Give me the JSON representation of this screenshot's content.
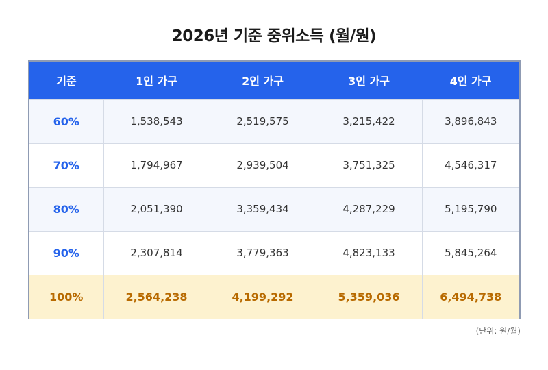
{
  "title": "2026년 기준 중위소득 (월/원)",
  "table": {
    "headers": [
      "기준",
      "1인 가구",
      "2인 가구",
      "3인 가구",
      "4인 가구"
    ],
    "rows": [
      {
        "label": "60%",
        "values": [
          "1,538,543",
          "2,519,575",
          "3,215,422",
          "3,896,843"
        ]
      },
      {
        "label": "70%",
        "values": [
          "1,794,967",
          "2,939,504",
          "3,751,325",
          "4,546,317"
        ]
      },
      {
        "label": "80%",
        "values": [
          "2,051,390",
          "3,359,434",
          "4,287,229",
          "5,195,790"
        ]
      },
      {
        "label": "90%",
        "values": [
          "2,307,814",
          "3,779,363",
          "4,823,133",
          "5,845,264"
        ]
      },
      {
        "label": "100%",
        "values": [
          "2,564,238",
          "4,199,292",
          "5,359,036",
          "6,494,738"
        ]
      }
    ]
  },
  "note": "(단위: 원/월)",
  "colors": {
    "header_bg": "#2563eb",
    "label_text": "#2563eb",
    "highlight_bg": "#fdf2cf",
    "highlight_text": "#b86a00",
    "row_shade": "#f4f7fd"
  }
}
